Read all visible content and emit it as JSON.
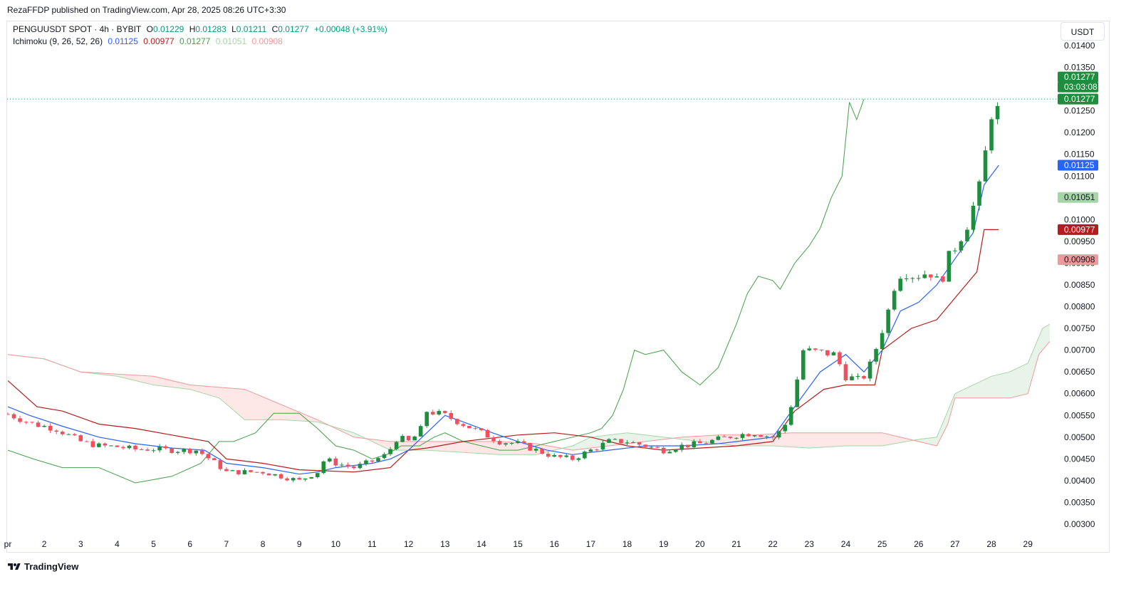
{
  "header": {
    "published": "RezaFFDP published on TradingView.com, Apr 28, 2025 08:26 UTC+3:30"
  },
  "legend": {
    "symbol": "PENGUUSDT SPOT · 4h · BYBIT",
    "open_label": "O",
    "open": "0.01229",
    "high_label": "H",
    "high": "0.01283",
    "low_label": "L",
    "low": "0.01211",
    "close_label": "C",
    "close": "0.01277",
    "change": "+0.00048 (+3.91%)",
    "ichimoku_label": "Ichimoku (9, 26, 52, 26)",
    "ichimoku_values": [
      "0.01125",
      "0.00977",
      "0.01277",
      "0.01051",
      "0.00908"
    ]
  },
  "currency": "USDT",
  "footer": {
    "brand": "TradingView"
  },
  "colors": {
    "up": "#089981",
    "down": "#f23645",
    "candle_up": "#1e8e3e",
    "candle_down": "#f0505e",
    "tenkan": "#2962ff",
    "kijun": "#b71c1c",
    "chikou": "#43a047",
    "span_a": "#a5d6a7",
    "span_b": "#ef9a9a",
    "cloud_bull": "rgba(67,160,71,0.12)",
    "cloud_bear": "rgba(244,67,54,0.12)"
  },
  "chart_data": {
    "type": "candlestick",
    "timeframe": "4h",
    "ylim": [
      0.0028,
      0.0143
    ],
    "y_ticks": [
      "0.01400",
      "0.01350",
      "0.01300",
      "0.01250",
      "0.01200",
      "0.01150",
      "0.01100",
      "0.01050",
      "0.01000",
      "0.00950",
      "0.00900",
      "0.00850",
      "0.00800",
      "0.00750",
      "0.00700",
      "0.00650",
      "0.00600",
      "0.00550",
      "0.00500",
      "0.00450",
      "0.00400",
      "0.00350",
      "0.00300"
    ],
    "y_tick_values": [
      0.014,
      0.0135,
      0.013,
      0.0125,
      0.012,
      0.0115,
      0.011,
      0.0105,
      0.01,
      0.0095,
      0.009,
      0.0085,
      0.008,
      0.0075,
      0.007,
      0.0065,
      0.006,
      0.0055,
      0.005,
      0.0045,
      0.004,
      0.0035,
      0.003
    ],
    "x_start_day": 1,
    "x_end_day": 29.6,
    "x_ticks": [
      "pr",
      "2",
      "3",
      "4",
      "5",
      "6",
      "7",
      "8",
      "9",
      "10",
      "11",
      "12",
      "13",
      "14",
      "15",
      "16",
      "17",
      "18",
      "19",
      "20",
      "21",
      "22",
      "23",
      "24",
      "25",
      "26",
      "27",
      "28",
      "29"
    ],
    "x_tick_days": [
      1,
      2,
      3,
      4,
      5,
      6,
      7,
      8,
      9,
      10,
      11,
      12,
      13,
      14,
      15,
      16,
      17,
      18,
      19,
      20,
      21,
      22,
      23,
      24,
      25,
      26,
      27,
      28,
      29
    ],
    "close_anchors": [
      [
        1.0,
        0.00553
      ],
      [
        1.7,
        0.0053
      ],
      [
        2.3,
        0.0052
      ],
      [
        3.0,
        0.0049
      ],
      [
        3.5,
        0.0048
      ],
      [
        4.0,
        0.00478
      ],
      [
        4.5,
        0.00472
      ],
      [
        5.0,
        0.00473
      ],
      [
        5.6,
        0.0047
      ],
      [
        6.2,
        0.0047
      ],
      [
        6.7,
        0.0044
      ],
      [
        7.0,
        0.0042
      ],
      [
        7.5,
        0.0042
      ],
      [
        8.0,
        0.0042
      ],
      [
        8.5,
        0.0041
      ],
      [
        9.0,
        0.004
      ],
      [
        9.5,
        0.0042
      ],
      [
        9.7,
        0.0045
      ],
      [
        10.0,
        0.0044
      ],
      [
        10.5,
        0.0043
      ],
      [
        11.0,
        0.00445
      ],
      [
        11.4,
        0.0046
      ],
      [
        11.7,
        0.005
      ],
      [
        12.0,
        0.0049
      ],
      [
        12.3,
        0.0051
      ],
      [
        12.5,
        0.0056
      ],
      [
        13.0,
        0.0055
      ],
      [
        13.5,
        0.0053
      ],
      [
        14.0,
        0.0051
      ],
      [
        14.5,
        0.0049
      ],
      [
        15.0,
        0.00485
      ],
      [
        15.5,
        0.0047
      ],
      [
        16.0,
        0.00455
      ],
      [
        16.5,
        0.0045
      ],
      [
        17.0,
        0.0047
      ],
      [
        17.5,
        0.0049
      ],
      [
        18.0,
        0.0049
      ],
      [
        18.5,
        0.0048
      ],
      [
        19.0,
        0.0047
      ],
      [
        19.5,
        0.0048
      ],
      [
        20.0,
        0.00485
      ],
      [
        20.5,
        0.00495
      ],
      [
        21.0,
        0.00505
      ],
      [
        21.5,
        0.0051
      ],
      [
        22.0,
        0.005
      ],
      [
        22.3,
        0.0052
      ],
      [
        22.6,
        0.006
      ],
      [
        22.8,
        0.007
      ],
      [
        23.3,
        0.00695
      ],
      [
        23.7,
        0.0069
      ],
      [
        24.0,
        0.0064
      ],
      [
        24.4,
        0.0063
      ],
      [
        24.6,
        0.0065
      ],
      [
        24.9,
        0.0072
      ],
      [
        25.2,
        0.008
      ],
      [
        25.4,
        0.0087
      ],
      [
        25.6,
        0.0088
      ],
      [
        25.9,
        0.0087
      ],
      [
        26.3,
        0.0088
      ],
      [
        26.6,
        0.0085
      ],
      [
        26.8,
        0.0091
      ],
      [
        27.1,
        0.0095
      ],
      [
        27.4,
        0.01
      ],
      [
        27.6,
        0.0106
      ],
      [
        27.8,
        0.011
      ],
      [
        27.9,
        0.0126
      ],
      [
        28.1,
        0.01229
      ],
      [
        28.2,
        0.01277
      ]
    ],
    "tenkan_anchors": [
      [
        1.0,
        0.0057
      ],
      [
        1.6,
        0.0055
      ],
      [
        2.5,
        0.00525
      ],
      [
        3.5,
        0.005
      ],
      [
        4.5,
        0.00485
      ],
      [
        5.5,
        0.00475
      ],
      [
        6.4,
        0.0047
      ],
      [
        7.0,
        0.0044
      ],
      [
        8.0,
        0.0043
      ],
      [
        9.0,
        0.00415
      ],
      [
        9.5,
        0.0042
      ],
      [
        10.0,
        0.0043
      ],
      [
        11.0,
        0.0044
      ],
      [
        11.5,
        0.0045
      ],
      [
        12.0,
        0.0047
      ],
      [
        12.5,
        0.0051
      ],
      [
        13.0,
        0.0055
      ],
      [
        13.5,
        0.00535
      ],
      [
        14.3,
        0.0051
      ],
      [
        15.0,
        0.0049
      ],
      [
        15.8,
        0.0047
      ],
      [
        16.5,
        0.0046
      ],
      [
        17.5,
        0.0047
      ],
      [
        18.5,
        0.0048
      ],
      [
        19.5,
        0.0048
      ],
      [
        20.5,
        0.00485
      ],
      [
        21.5,
        0.00495
      ],
      [
        22.0,
        0.005
      ],
      [
        22.6,
        0.0057
      ],
      [
        23.3,
        0.0065
      ],
      [
        24.0,
        0.0069
      ],
      [
        24.5,
        0.0065
      ],
      [
        25.0,
        0.007
      ],
      [
        25.5,
        0.0079
      ],
      [
        26.0,
        0.0081
      ],
      [
        26.5,
        0.0085
      ],
      [
        27.0,
        0.0091
      ],
      [
        27.5,
        0.0097
      ],
      [
        27.8,
        0.0108
      ],
      [
        28.2,
        0.01125
      ]
    ],
    "kijun_anchors": [
      [
        1.0,
        0.0063
      ],
      [
        1.8,
        0.0057
      ],
      [
        2.5,
        0.0056
      ],
      [
        3.5,
        0.0053
      ],
      [
        4.5,
        0.0052
      ],
      [
        5.5,
        0.00505
      ],
      [
        6.5,
        0.0049
      ],
      [
        7.0,
        0.0045
      ],
      [
        7.5,
        0.00445
      ],
      [
        8.0,
        0.0044
      ],
      [
        9.0,
        0.00425
      ],
      [
        10.5,
        0.0042
      ],
      [
        11.5,
        0.0043
      ],
      [
        12.0,
        0.0047
      ],
      [
        12.5,
        0.00475
      ],
      [
        13.5,
        0.0049
      ],
      [
        14.5,
        0.005
      ],
      [
        15.0,
        0.00505
      ],
      [
        16.0,
        0.0051
      ],
      [
        17.0,
        0.005
      ],
      [
        18.0,
        0.0048
      ],
      [
        19.0,
        0.0047
      ],
      [
        20.0,
        0.00475
      ],
      [
        21.0,
        0.0048
      ],
      [
        22.0,
        0.0049
      ],
      [
        22.6,
        0.0056
      ],
      [
        23.4,
        0.0061
      ],
      [
        24.0,
        0.0062
      ],
      [
        24.8,
        0.0062
      ],
      [
        25.0,
        0.007
      ],
      [
        25.8,
        0.0075
      ],
      [
        26.5,
        0.0077
      ],
      [
        27.0,
        0.0082
      ],
      [
        27.6,
        0.0088
      ],
      [
        27.8,
        0.00977
      ],
      [
        28.2,
        0.00977
      ]
    ],
    "chikou_anchors": [
      [
        1.0,
        0.0047
      ],
      [
        1.7,
        0.0045
      ],
      [
        2.5,
        0.0043
      ],
      [
        3.5,
        0.0043
      ],
      [
        4.5,
        0.00395
      ],
      [
        5.5,
        0.0041
      ],
      [
        6.3,
        0.0044
      ],
      [
        6.8,
        0.0049
      ],
      [
        7.2,
        0.0049
      ],
      [
        7.5,
        0.005
      ],
      [
        7.8,
        0.0051
      ],
      [
        8.3,
        0.00555
      ],
      [
        9.0,
        0.00555
      ],
      [
        9.5,
        0.0052
      ],
      [
        10.0,
        0.0048
      ],
      [
        10.5,
        0.0047
      ],
      [
        11.0,
        0.0045
      ],
      [
        11.4,
        0.0046
      ],
      [
        11.8,
        0.0048
      ],
      [
        12.3,
        0.0048
      ],
      [
        12.7,
        0.005
      ],
      [
        13.0,
        0.0051
      ],
      [
        13.5,
        0.0049
      ],
      [
        14.0,
        0.0048
      ],
      [
        14.5,
        0.0047
      ],
      [
        15.0,
        0.0047
      ],
      [
        15.5,
        0.0048
      ],
      [
        16.0,
        0.0049
      ],
      [
        16.5,
        0.005
      ],
      [
        17.0,
        0.0051
      ],
      [
        17.3,
        0.0052
      ],
      [
        17.6,
        0.0055
      ],
      [
        17.9,
        0.0061
      ],
      [
        18.2,
        0.007
      ],
      [
        18.5,
        0.0069
      ],
      [
        19.0,
        0.007
      ],
      [
        19.5,
        0.0065
      ],
      [
        20.0,
        0.0062
      ],
      [
        20.5,
        0.0066
      ],
      [
        21.0,
        0.0076
      ],
      [
        21.3,
        0.0083
      ],
      [
        21.6,
        0.0087
      ],
      [
        22.0,
        0.0086
      ],
      [
        22.2,
        0.0084
      ],
      [
        22.6,
        0.009
      ],
      [
        23.0,
        0.0094
      ],
      [
        23.3,
        0.0098
      ],
      [
        23.6,
        0.0105
      ],
      [
        23.9,
        0.011
      ],
      [
        24.1,
        0.0127
      ],
      [
        24.3,
        0.0123
      ],
      [
        24.5,
        0.01277
      ]
    ],
    "span_a_anchors": [
      [
        1.0,
        0.0069
      ],
      [
        2.0,
        0.0068
      ],
      [
        3.0,
        0.0065
      ],
      [
        4.0,
        0.0064
      ],
      [
        5.0,
        0.0062
      ],
      [
        6.0,
        0.0061
      ],
      [
        6.8,
        0.0059
      ],
      [
        7.5,
        0.0054
      ],
      [
        8.5,
        0.0054
      ],
      [
        9.5,
        0.00535
      ],
      [
        10.5,
        0.0051
      ],
      [
        11.5,
        0.0047
      ],
      [
        12.5,
        0.0047
      ],
      [
        13.5,
        0.00465
      ],
      [
        14.5,
        0.0046
      ],
      [
        15.5,
        0.0046
      ],
      [
        16.5,
        0.0048
      ],
      [
        17.0,
        0.005
      ],
      [
        18.0,
        0.0051
      ],
      [
        19.0,
        0.005
      ],
      [
        20.0,
        0.0049
      ],
      [
        21.0,
        0.0048
      ],
      [
        22.0,
        0.0048
      ],
      [
        23.0,
        0.00475
      ],
      [
        24.0,
        0.0048
      ],
      [
        25.0,
        0.0048
      ],
      [
        26.0,
        0.00495
      ],
      [
        26.5,
        0.005
      ],
      [
        27.0,
        0.006
      ],
      [
        28.0,
        0.0064
      ],
      [
        28.5,
        0.0065
      ],
      [
        29.0,
        0.0067
      ],
      [
        29.4,
        0.0075
      ],
      [
        29.6,
        0.0076
      ]
    ],
    "span_b_anchors": [
      [
        1.0,
        0.0069
      ],
      [
        2.0,
        0.0068
      ],
      [
        3.0,
        0.0065
      ],
      [
        4.0,
        0.00645
      ],
      [
        5.0,
        0.0064
      ],
      [
        6.0,
        0.0062
      ],
      [
        7.5,
        0.0061
      ],
      [
        9.5,
        0.0054
      ],
      [
        10.5,
        0.005
      ],
      [
        11.5,
        0.0049
      ],
      [
        12.5,
        0.0049
      ],
      [
        13.5,
        0.0049
      ],
      [
        14.5,
        0.0049
      ],
      [
        15.5,
        0.00485
      ],
      [
        16.5,
        0.0047
      ],
      [
        17.5,
        0.0048
      ],
      [
        18.5,
        0.0049
      ],
      [
        19.5,
        0.005
      ],
      [
        20.5,
        0.00505
      ],
      [
        21.5,
        0.00505
      ],
      [
        22.5,
        0.0051
      ],
      [
        23.5,
        0.0051
      ],
      [
        24.5,
        0.0051
      ],
      [
        25.0,
        0.0051
      ],
      [
        26.5,
        0.0048
      ],
      [
        26.8,
        0.0053
      ],
      [
        27.0,
        0.0059
      ],
      [
        28.5,
        0.0059
      ],
      [
        29.0,
        0.006
      ],
      [
        29.3,
        0.0069
      ],
      [
        29.6,
        0.0072
      ]
    ],
    "price_labels": [
      {
        "text": "0.01277",
        "value": 0.01277,
        "bg": "#1e8e3e",
        "fg": "#ffffff",
        "offset": -31
      },
      {
        "text": "03:03:08",
        "value": 0.01277,
        "bg": "#1e8e3e",
        "fg": "#ffffff",
        "offset": -17
      },
      {
        "text": "0.01277",
        "value": 0.01277,
        "bg": "#1e8e3e",
        "fg": "#ffffff",
        "offset": 0
      },
      {
        "text": "0.01125",
        "value": 0.01125,
        "bg": "#2962ff",
        "fg": "#ffffff",
        "offset": 0
      },
      {
        "text": "0.01051",
        "value": 0.01051,
        "bg": "#a5d6a7",
        "fg": "#131722",
        "offset": 0
      },
      {
        "text": "0.00977",
        "value": 0.00977,
        "bg": "#b71c1c",
        "fg": "#ffffff",
        "offset": 0
      },
      {
        "text": "0.00908",
        "value": 0.00908,
        "bg": "#ef9a9a",
        "fg": "#131722",
        "offset": 0
      }
    ],
    "last_price": 0.01277
  }
}
